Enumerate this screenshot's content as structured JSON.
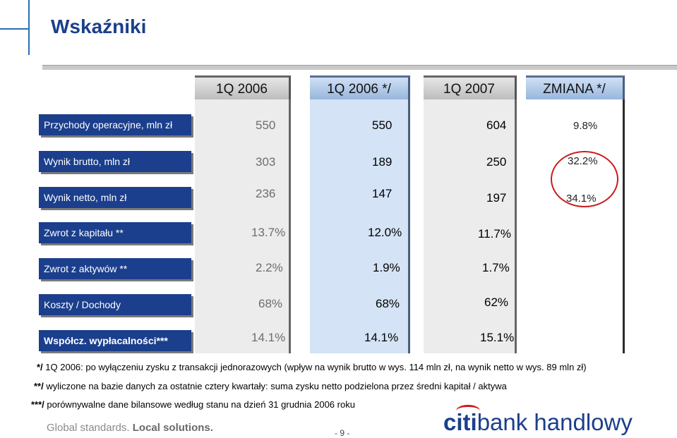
{
  "title": "Wskaźniki",
  "columns": [
    "1Q 2006",
    "1Q 2006 */",
    "1Q 2007",
    "ZMIANA */"
  ],
  "rows": [
    {
      "label": "Przychody operacyjne, mln zł",
      "v": [
        "550",
        "550",
        "604",
        "9.8%"
      ]
    },
    {
      "label": "Wynik brutto, mln zł",
      "v": [
        "303",
        "189",
        "250",
        "32.2%"
      ]
    },
    {
      "label": "Wynik netto, mln zł",
      "v": [
        "236",
        "147",
        "197",
        "34.1%"
      ]
    },
    {
      "label": "Zwrot z kapitału **",
      "v": [
        "13.7%",
        "12.0%",
        "11.7%"
      ]
    },
    {
      "label": "Zwrot z aktywów **",
      "v": [
        "2.2%",
        "1.9%",
        "1.7%"
      ]
    },
    {
      "label": "Koszty / Dochody",
      "v": [
        "68%",
        "68%",
        "62%"
      ]
    },
    {
      "label": "Współcz. wypłacalności***",
      "v": [
        "14.1%",
        "14.1%",
        "15.1%"
      ]
    }
  ],
  "notes": [
    {
      "mark": "*/",
      "text": " 1Q 2006: po wyłączeniu zysku z transakcji jednorazowych  (wpływ na wynik brutto w wys. 114 mln zł, na wynik netto w wys. 89 mln zł)"
    },
    {
      "mark": "**/",
      "text": "  wyliczone na bazie danych za ostatnie cztery kwartały: suma zysku netto podzielona przez średni kapitał / aktywa"
    },
    {
      "mark": "***/",
      "text": " porównywalne dane bilansowe według stanu na dzień 31 grudnia 2006 roku"
    }
  ],
  "footer": {
    "tagline_1": "Global standards. ",
    "tagline_2": "Local solutions.",
    "page": "- 9 -",
    "logo_1": "citi",
    "logo_2": "bank handlowy"
  },
  "colors": {
    "brand": "#1b3f8c",
    "highlight": "#cc1b1b"
  }
}
